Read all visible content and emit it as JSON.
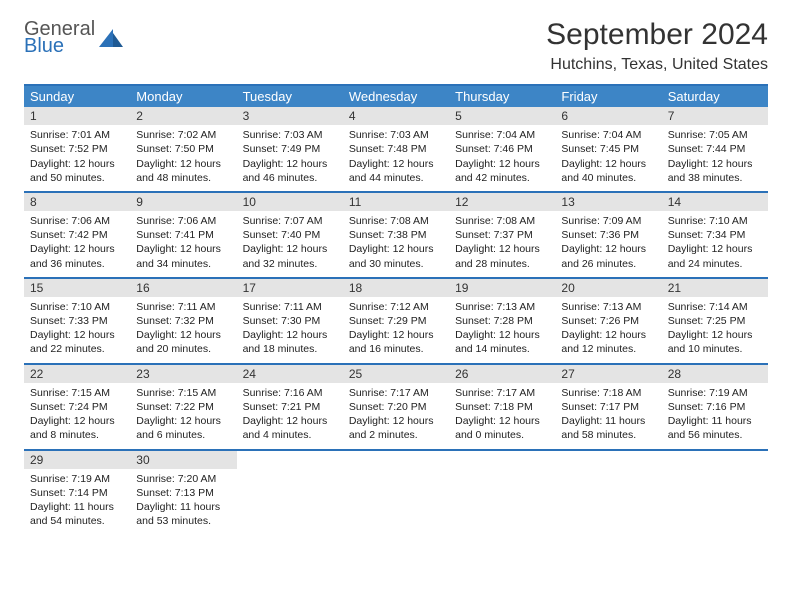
{
  "logo": {
    "line1": "General",
    "line2": "Blue",
    "accent_color": "#2b71b8",
    "text_color": "#555555"
  },
  "title": "September 2024",
  "location": "Hutchins, Texas, United States",
  "header_bg": "#3d85c6",
  "border_color": "#2b71b8",
  "daynum_bg": "#e4e4e4",
  "weekdays": [
    "Sunday",
    "Monday",
    "Tuesday",
    "Wednesday",
    "Thursday",
    "Friday",
    "Saturday"
  ],
  "days": [
    {
      "n": "1",
      "sunrise": "7:01 AM",
      "sunset": "7:52 PM",
      "dl": "12 hours and 50 minutes."
    },
    {
      "n": "2",
      "sunrise": "7:02 AM",
      "sunset": "7:50 PM",
      "dl": "12 hours and 48 minutes."
    },
    {
      "n": "3",
      "sunrise": "7:03 AM",
      "sunset": "7:49 PM",
      "dl": "12 hours and 46 minutes."
    },
    {
      "n": "4",
      "sunrise": "7:03 AM",
      "sunset": "7:48 PM",
      "dl": "12 hours and 44 minutes."
    },
    {
      "n": "5",
      "sunrise": "7:04 AM",
      "sunset": "7:46 PM",
      "dl": "12 hours and 42 minutes."
    },
    {
      "n": "6",
      "sunrise": "7:04 AM",
      "sunset": "7:45 PM",
      "dl": "12 hours and 40 minutes."
    },
    {
      "n": "7",
      "sunrise": "7:05 AM",
      "sunset": "7:44 PM",
      "dl": "12 hours and 38 minutes."
    },
    {
      "n": "8",
      "sunrise": "7:06 AM",
      "sunset": "7:42 PM",
      "dl": "12 hours and 36 minutes."
    },
    {
      "n": "9",
      "sunrise": "7:06 AM",
      "sunset": "7:41 PM",
      "dl": "12 hours and 34 minutes."
    },
    {
      "n": "10",
      "sunrise": "7:07 AM",
      "sunset": "7:40 PM",
      "dl": "12 hours and 32 minutes."
    },
    {
      "n": "11",
      "sunrise": "7:08 AM",
      "sunset": "7:38 PM",
      "dl": "12 hours and 30 minutes."
    },
    {
      "n": "12",
      "sunrise": "7:08 AM",
      "sunset": "7:37 PM",
      "dl": "12 hours and 28 minutes."
    },
    {
      "n": "13",
      "sunrise": "7:09 AM",
      "sunset": "7:36 PM",
      "dl": "12 hours and 26 minutes."
    },
    {
      "n": "14",
      "sunrise": "7:10 AM",
      "sunset": "7:34 PM",
      "dl": "12 hours and 24 minutes."
    },
    {
      "n": "15",
      "sunrise": "7:10 AM",
      "sunset": "7:33 PM",
      "dl": "12 hours and 22 minutes."
    },
    {
      "n": "16",
      "sunrise": "7:11 AM",
      "sunset": "7:32 PM",
      "dl": "12 hours and 20 minutes."
    },
    {
      "n": "17",
      "sunrise": "7:11 AM",
      "sunset": "7:30 PM",
      "dl": "12 hours and 18 minutes."
    },
    {
      "n": "18",
      "sunrise": "7:12 AM",
      "sunset": "7:29 PM",
      "dl": "12 hours and 16 minutes."
    },
    {
      "n": "19",
      "sunrise": "7:13 AM",
      "sunset": "7:28 PM",
      "dl": "12 hours and 14 minutes."
    },
    {
      "n": "20",
      "sunrise": "7:13 AM",
      "sunset": "7:26 PM",
      "dl": "12 hours and 12 minutes."
    },
    {
      "n": "21",
      "sunrise": "7:14 AM",
      "sunset": "7:25 PM",
      "dl": "12 hours and 10 minutes."
    },
    {
      "n": "22",
      "sunrise": "7:15 AM",
      "sunset": "7:24 PM",
      "dl": "12 hours and 8 minutes."
    },
    {
      "n": "23",
      "sunrise": "7:15 AM",
      "sunset": "7:22 PM",
      "dl": "12 hours and 6 minutes."
    },
    {
      "n": "24",
      "sunrise": "7:16 AM",
      "sunset": "7:21 PM",
      "dl": "12 hours and 4 minutes."
    },
    {
      "n": "25",
      "sunrise": "7:17 AM",
      "sunset": "7:20 PM",
      "dl": "12 hours and 2 minutes."
    },
    {
      "n": "26",
      "sunrise": "7:17 AM",
      "sunset": "7:18 PM",
      "dl": "12 hours and 0 minutes."
    },
    {
      "n": "27",
      "sunrise": "7:18 AM",
      "sunset": "7:17 PM",
      "dl": "11 hours and 58 minutes."
    },
    {
      "n": "28",
      "sunrise": "7:19 AM",
      "sunset": "7:16 PM",
      "dl": "11 hours and 56 minutes."
    },
    {
      "n": "29",
      "sunrise": "7:19 AM",
      "sunset": "7:14 PM",
      "dl": "11 hours and 54 minutes."
    },
    {
      "n": "30",
      "sunrise": "7:20 AM",
      "sunset": "7:13 PM",
      "dl": "11 hours and 53 minutes."
    }
  ],
  "labels": {
    "sunrise": "Sunrise:",
    "sunset": "Sunset:",
    "daylight": "Daylight:"
  }
}
